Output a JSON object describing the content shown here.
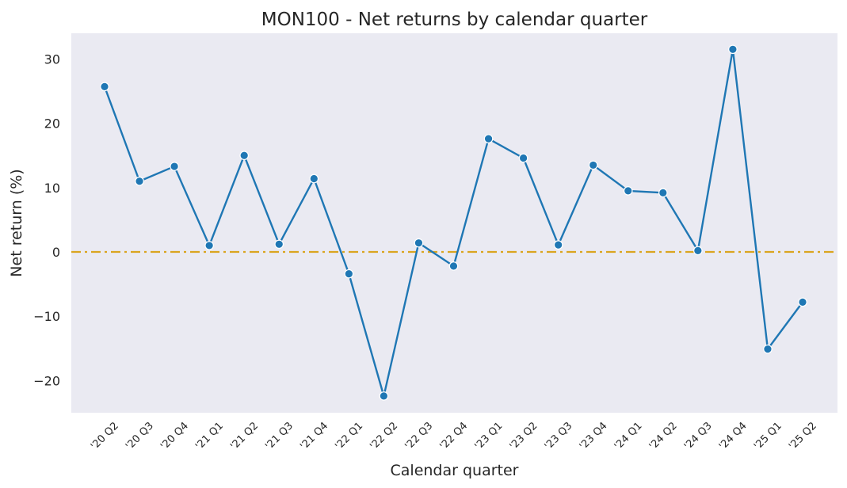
{
  "chart_data": {
    "type": "line",
    "title": "MON100 - Net returns by calendar quarter",
    "xlabel": "Calendar quarter",
    "ylabel": "Net return (%)",
    "categories": [
      "'20 Q2",
      "'20 Q3",
      "'20 Q4",
      "'21 Q1",
      "'21 Q2",
      "'21 Q3",
      "'21 Q4",
      "'22 Q1",
      "'22 Q2",
      "'22 Q3",
      "'22 Q4",
      "'23 Q1",
      "'23 Q2",
      "'23 Q3",
      "'23 Q4",
      "'24 Q1",
      "'24 Q2",
      "'24 Q3",
      "'24 Q4",
      "'25 Q1",
      "'25 Q2"
    ],
    "values": [
      25.7,
      11.0,
      13.3,
      1.0,
      15.0,
      1.2,
      11.4,
      -3.4,
      -22.4,
      1.4,
      -2.2,
      17.6,
      14.6,
      1.1,
      13.5,
      9.5,
      9.2,
      0.2,
      31.5,
      -15.1,
      -7.8
    ],
    "ylim": [
      -25,
      34
    ],
    "yticks": [
      -20,
      -10,
      0,
      10,
      20,
      30
    ],
    "ytick_labels": [
      "−20",
      "−10",
      "0",
      "10",
      "20",
      "30"
    ],
    "reference_line": {
      "y": 0,
      "style": "dash-dot",
      "color": "#DAA520"
    },
    "line_color": "#1f77b4",
    "background_color": "#EAEAF2",
    "grid": false,
    "legend": "none"
  }
}
